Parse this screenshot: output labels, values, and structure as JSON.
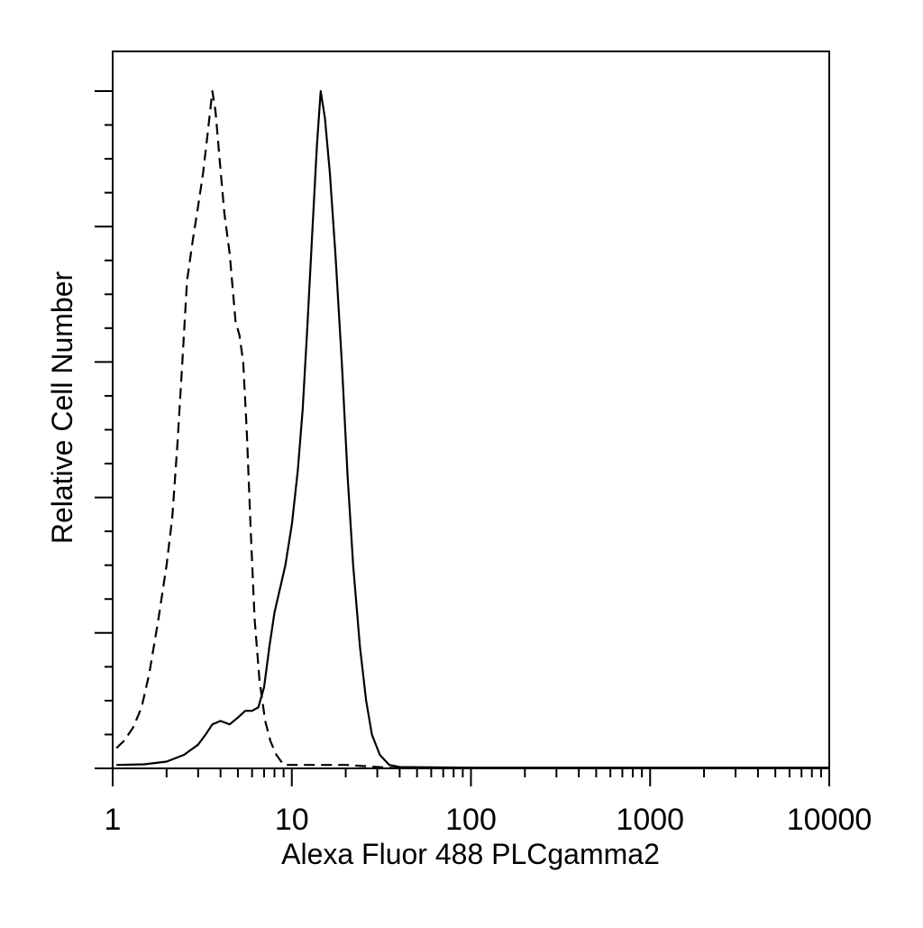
{
  "chart_data": {
    "type": "line",
    "title": "",
    "xlabel": "Alexa Fluor 488 PLCgamma2",
    "ylabel": "Relative Cell Number",
    "x_scale": "log",
    "xlim": [
      1,
      10000
    ],
    "ylim": [
      0,
      1.05
    ],
    "x_tick_labels": [
      "1",
      "10",
      "100",
      "1000",
      "10000"
    ],
    "x_tick_values": [
      1,
      10,
      100,
      1000,
      10000
    ],
    "y_major_ticks": [
      0,
      0.2,
      0.4,
      0.6,
      0.8,
      1.0
    ],
    "grid": false,
    "legend": "none",
    "series": [
      {
        "style": "dashed",
        "color": "#000000",
        "points": [
          [
            1.05,
            0.03
          ],
          [
            1.15,
            0.04
          ],
          [
            1.3,
            0.06
          ],
          [
            1.45,
            0.09
          ],
          [
            1.6,
            0.14
          ],
          [
            1.8,
            0.22
          ],
          [
            2.0,
            0.3
          ],
          [
            2.15,
            0.37
          ],
          [
            2.3,
            0.48
          ],
          [
            2.45,
            0.6
          ],
          [
            2.6,
            0.72
          ],
          [
            2.8,
            0.78
          ],
          [
            3.0,
            0.83
          ],
          [
            3.2,
            0.88
          ],
          [
            3.4,
            0.94
          ],
          [
            3.6,
            1.0
          ],
          [
            3.75,
            0.97
          ],
          [
            3.95,
            0.9
          ],
          [
            4.2,
            0.82
          ],
          [
            4.5,
            0.76
          ],
          [
            4.85,
            0.66
          ],
          [
            5.1,
            0.64
          ],
          [
            5.35,
            0.6
          ],
          [
            5.6,
            0.5
          ],
          [
            5.9,
            0.35
          ],
          [
            6.2,
            0.22
          ],
          [
            6.6,
            0.13
          ],
          [
            7.1,
            0.07
          ],
          [
            7.6,
            0.04
          ],
          [
            8.2,
            0.02
          ],
          [
            9.0,
            0.005
          ],
          [
            12,
            0.005
          ],
          [
            20,
            0.005
          ],
          [
            40,
            0.0
          ]
        ]
      },
      {
        "style": "solid",
        "color": "#000000",
        "points": [
          [
            1.05,
            0.005
          ],
          [
            1.5,
            0.006
          ],
          [
            2.0,
            0.01
          ],
          [
            2.5,
            0.02
          ],
          [
            3.0,
            0.035
          ],
          [
            3.3,
            0.05
          ],
          [
            3.6,
            0.065
          ],
          [
            4.0,
            0.07
          ],
          [
            4.5,
            0.065
          ],
          [
            5.0,
            0.075
          ],
          [
            5.5,
            0.085
          ],
          [
            6.0,
            0.085
          ],
          [
            6.5,
            0.09
          ],
          [
            7.0,
            0.12
          ],
          [
            7.5,
            0.18
          ],
          [
            8.0,
            0.23
          ],
          [
            8.5,
            0.26
          ],
          [
            9.2,
            0.3
          ],
          [
            10.0,
            0.36
          ],
          [
            10.8,
            0.44
          ],
          [
            11.5,
            0.53
          ],
          [
            12.2,
            0.65
          ],
          [
            13.0,
            0.79
          ],
          [
            13.8,
            0.92
          ],
          [
            14.5,
            1.0
          ],
          [
            15.3,
            0.96
          ],
          [
            16.3,
            0.88
          ],
          [
            17.5,
            0.76
          ],
          [
            19.0,
            0.6
          ],
          [
            20.5,
            0.43
          ],
          [
            22.0,
            0.3
          ],
          [
            24.0,
            0.18
          ],
          [
            26.0,
            0.1
          ],
          [
            28.0,
            0.05
          ],
          [
            31.0,
            0.02
          ],
          [
            35.0,
            0.005
          ],
          [
            40.0,
            0.002
          ],
          [
            100,
            0.001
          ],
          [
            1000,
            0.001
          ],
          [
            10000,
            0.001
          ]
        ]
      }
    ]
  }
}
